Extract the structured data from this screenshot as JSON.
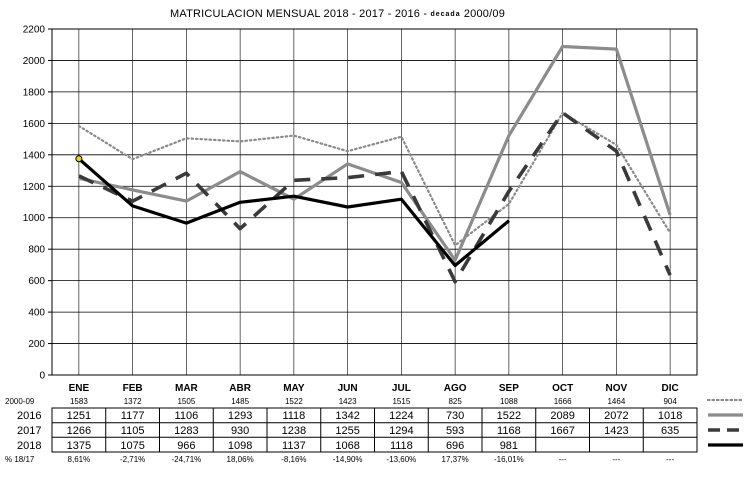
{
  "chart_data": {
    "type": "line",
    "title_parts": {
      "main": "MATRICULACION MENSUAL  2018 - 2017 - 2016 - ",
      "decada": "decada",
      "tail": " 2000/09"
    },
    "categories": [
      "ENE",
      "FEB",
      "MAR",
      "ABR",
      "MAY",
      "JUN",
      "JUL",
      "AGO",
      "SEP",
      "OCT",
      "NOV",
      "DIC"
    ],
    "ylim": [
      0,
      2200
    ],
    "yticks": [
      0,
      200,
      400,
      600,
      800,
      1000,
      1200,
      1400,
      1600,
      1800,
      2000,
      2200
    ],
    "grid": true,
    "series": [
      {
        "name": "2000-09",
        "style": "dotted",
        "color": "#888888",
        "values": [
          1583,
          1372,
          1505,
          1485,
          1522,
          1423,
          1515,
          825,
          1088,
          1666,
          1464,
          904
        ],
        "labels": [
          "1583",
          "1372",
          "1505",
          "1485",
          "1522",
          "1423",
          "1515",
          "825",
          "1088",
          "1666",
          "1464",
          "904"
        ]
      },
      {
        "name": "2016",
        "style": "solid-gray",
        "color": "#8c8c8c",
        "values": [
          1251,
          1177,
          1106,
          1293,
          1118,
          1342,
          1224,
          730,
          1522,
          2089,
          2072,
          1018
        ],
        "labels": [
          "1251",
          "1177",
          "1106",
          "1293",
          "1118",
          "1342",
          "1224",
          "730",
          "1522",
          "2089",
          "2072",
          "1018"
        ]
      },
      {
        "name": "2017",
        "style": "dashed",
        "color": "#3a3a3a",
        "values": [
          1266,
          1105,
          1283,
          930,
          1238,
          1255,
          1294,
          593,
          1168,
          1667,
          1423,
          635
        ],
        "labels": [
          "1266",
          "1105",
          "1283",
          "930",
          "1238",
          "1255",
          "1294",
          "593",
          "1168",
          "1667",
          "1423",
          "635"
        ]
      },
      {
        "name": "2018",
        "style": "solid-black",
        "color": "#000000",
        "values": [
          1375,
          1075,
          966,
          1098,
          1137,
          1068,
          1118,
          696,
          981,
          null,
          null,
          null
        ],
        "labels": [
          "1375",
          "1075",
          "966",
          "1098",
          "1137",
          "1068",
          "1118",
          "696",
          "981",
          "",
          "",
          ""
        ]
      }
    ],
    "pct_row": {
      "name": "% 18/17",
      "labels": [
        "8,61%",
        "-2,71%",
        "-24,71%",
        "18,06%",
        "-8,16%",
        "-14,90%",
        "-13,60%",
        "17,37%",
        "-16,01%",
        "---",
        "---",
        "---"
      ]
    }
  }
}
